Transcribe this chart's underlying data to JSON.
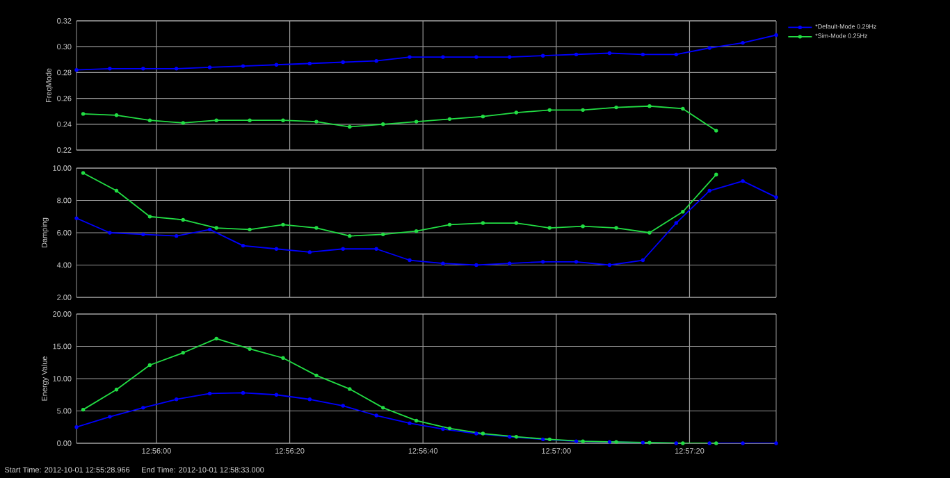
{
  "chart_data": [
    {
      "type": "line",
      "ylabel": "FreqMode",
      "grid": true,
      "legend": "top right",
      "marker": "circle",
      "line_style": "solid",
      "tick_labels": "y",
      "xlim": [
        12.93,
        12.959167
      ],
      "xticks": [
        {
          "value": 12.933333,
          "label": null
        },
        {
          "value": 12.938889,
          "label": null
        },
        {
          "value": 12.944444,
          "label": null
        },
        {
          "value": 12.95,
          "label": null
        },
        {
          "value": 12.955556,
          "label": null
        }
      ],
      "ylim": [
        0.22,
        0.32
      ],
      "yticks": [
        {
          "value": 0.22,
          "label": "0.22"
        },
        {
          "value": 0.24,
          "label": "0.24"
        },
        {
          "value": 0.26,
          "label": "0.26"
        },
        {
          "value": 0.28,
          "label": "0.28"
        },
        {
          "value": 0.3,
          "label": "0.30"
        },
        {
          "value": 0.32,
          "label": "0.32"
        }
      ],
      "series": [
        {
          "name": "*Default-Mode 0.29Hz",
          "color": "#0000ff",
          "x": [
            12.93,
            12.931389,
            12.932778,
            12.934167,
            12.935556,
            12.936944,
            12.938333,
            12.939722,
            12.941111,
            12.9425,
            12.943889,
            12.945278,
            12.946667,
            12.948056,
            12.949444,
            12.950833,
            12.952222,
            12.953611,
            12.955,
            12.956389,
            12.957778,
            12.959167
          ],
          "values": [
            0.282,
            0.283,
            0.283,
            0.283,
            0.284,
            0.285,
            0.286,
            0.287,
            0.288,
            0.289,
            0.292,
            0.292,
            0.292,
            0.292,
            0.293,
            0.294,
            0.295,
            0.294,
            0.294,
            0.299,
            0.303,
            0.309
          ]
        },
        {
          "name": "*Sim-Mode 0.25Hz",
          "color": "#22dd44",
          "x": [
            12.930278,
            12.931667,
            12.933056,
            12.934444,
            12.935833,
            12.937222,
            12.938611,
            12.94,
            12.941389,
            12.942778,
            12.944167,
            12.945556,
            12.946944,
            12.948333,
            12.949722,
            12.951111,
            12.9525,
            12.953889,
            12.955278,
            12.956667
          ],
          "values": [
            0.248,
            0.247,
            0.243,
            0.241,
            0.243,
            0.243,
            0.243,
            0.242,
            0.238,
            0.24,
            0.242,
            0.244,
            0.246,
            0.249,
            0.251,
            0.251,
            0.253,
            0.254,
            0.252,
            0.235
          ]
        }
      ]
    },
    {
      "type": "line",
      "ylabel": "Damping",
      "grid": true,
      "marker": "circle",
      "line_style": "solid",
      "tick_labels": "y",
      "xlim": [
        12.93,
        12.959167
      ],
      "xticks": [
        {
          "value": 12.933333,
          "label": null
        },
        {
          "value": 12.938889,
          "label": null
        },
        {
          "value": 12.944444,
          "label": null
        },
        {
          "value": 12.95,
          "label": null
        },
        {
          "value": 12.955556,
          "label": null
        }
      ],
      "ylim": [
        2,
        10
      ],
      "yticks": [
        {
          "value": 2,
          "label": "2.00"
        },
        {
          "value": 4,
          "label": "4.00"
        },
        {
          "value": 6,
          "label": "6.00"
        },
        {
          "value": 8,
          "label": "8.00"
        },
        {
          "value": 10,
          "label": "10.00"
        }
      ],
      "series": [
        {
          "color": "#0000ff",
          "x": [
            12.93,
            12.931389,
            12.932778,
            12.934167,
            12.935556,
            12.936944,
            12.938333,
            12.939722,
            12.941111,
            12.9425,
            12.943889,
            12.945278,
            12.946667,
            12.948056,
            12.949444,
            12.950833,
            12.952222,
            12.953611,
            12.955,
            12.956389,
            12.957778,
            12.959167
          ],
          "values": [
            6.9,
            6.0,
            5.9,
            5.8,
            6.2,
            5.2,
            5.0,
            4.8,
            5.0,
            5.0,
            4.3,
            4.1,
            4.0,
            4.1,
            4.2,
            4.2,
            4.0,
            4.3,
            6.6,
            8.6,
            9.2,
            8.2
          ]
        },
        {
          "color": "#22dd44",
          "x": [
            12.930278,
            12.931667,
            12.933056,
            12.934444,
            12.935833,
            12.937222,
            12.938611,
            12.94,
            12.941389,
            12.942778,
            12.944167,
            12.945556,
            12.946944,
            12.948333,
            12.949722,
            12.951111,
            12.9525,
            12.953889,
            12.955278,
            12.956667
          ],
          "values": [
            9.7,
            8.6,
            7.0,
            6.8,
            6.3,
            6.2,
            6.5,
            6.3,
            5.8,
            5.9,
            6.1,
            6.5,
            6.6,
            6.6,
            6.3,
            6.4,
            6.3,
            6.0,
            7.3,
            9.6
          ]
        }
      ]
    },
    {
      "type": "line",
      "ylabel": "Energy Value",
      "grid": true,
      "marker": "circle",
      "line_style": "solid",
      "annotations": [
        "Start Time: 2012-10-01 12:55:28.966",
        "End Time: 2012-10-01 12:58:33.000"
      ],
      "xlim": [
        12.93,
        12.959167
      ],
      "xticks": [
        {
          "value": 12.933333,
          "label": "12:56:00"
        },
        {
          "value": 12.938889,
          "label": "12:56:20"
        },
        {
          "value": 12.944444,
          "label": "12:56:40"
        },
        {
          "value": 12.95,
          "label": "12:57:00"
        },
        {
          "value": 12.955556,
          "label": "12:57:20"
        }
      ],
      "ylim": [
        0,
        20
      ],
      "yticks": [
        {
          "value": 0,
          "label": "0.00"
        },
        {
          "value": 5,
          "label": "5.00"
        },
        {
          "value": 10,
          "label": "10.00"
        },
        {
          "value": 15,
          "label": "15.00"
        },
        {
          "value": 20,
          "label": "20.00"
        }
      ],
      "series": [
        {
          "color": "#0000ff",
          "x": [
            12.93,
            12.931389,
            12.932778,
            12.934167,
            12.935556,
            12.936944,
            12.938333,
            12.939722,
            12.941111,
            12.9425,
            12.943889,
            12.945278,
            12.946667,
            12.948056,
            12.949444,
            12.950833,
            12.952222,
            12.953611,
            12.955,
            12.956389,
            12.957778,
            12.959167
          ],
          "values": [
            2.5,
            4.1,
            5.5,
            6.8,
            7.7,
            7.8,
            7.5,
            6.8,
            5.8,
            4.3,
            3.1,
            2.2,
            1.5,
            1.0,
            0.6,
            0.3,
            0.2,
            0.1,
            0.0,
            0.0,
            0.0,
            0.0
          ]
        },
        {
          "color": "#22dd44",
          "x": [
            12.930278,
            12.931667,
            12.933056,
            12.934444,
            12.935833,
            12.937222,
            12.938611,
            12.94,
            12.941389,
            12.942778,
            12.944167,
            12.945556,
            12.946944,
            12.948333,
            12.949722,
            12.951111,
            12.9525,
            12.953889,
            12.955278,
            12.956667
          ],
          "values": [
            5.2,
            8.3,
            12.1,
            14.0,
            16.2,
            14.6,
            13.2,
            10.5,
            8.4,
            5.5,
            3.5,
            2.3,
            1.5,
            1.0,
            0.6,
            0.3,
            0.2,
            0.1,
            0.0,
            0.0
          ]
        }
      ]
    }
  ]
}
